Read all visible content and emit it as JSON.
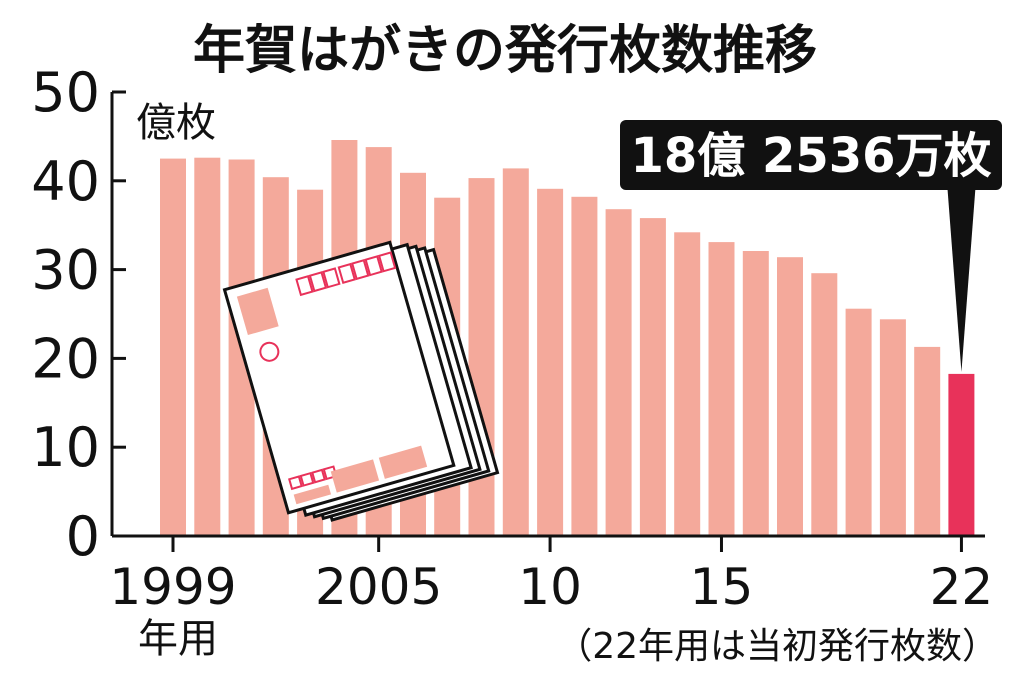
{
  "chart_data": {
    "type": "bar",
    "title": "年賀はがきの発行枚数推移",
    "ylabel": "億枚",
    "ylim": [
      0,
      50
    ],
    "yticks": [
      0,
      10,
      20,
      30,
      40,
      50
    ],
    "x": [
      1999,
      2000,
      2001,
      2002,
      2003,
      2004,
      2005,
      2006,
      2007,
      2008,
      2009,
      2010,
      2011,
      2012,
      2013,
      2014,
      2015,
      2016,
      2017,
      2018,
      2019,
      2020,
      2021,
      2022
    ],
    "values": [
      42.5,
      42.6,
      42.4,
      40.4,
      39.0,
      44.6,
      43.8,
      40.9,
      38.1,
      40.3,
      41.4,
      39.1,
      38.2,
      36.8,
      35.8,
      34.2,
      33.1,
      32.1,
      31.4,
      29.6,
      25.6,
      24.4,
      21.3,
      18.2536
    ],
    "xtick_labels": [
      {
        "x": 1999,
        "label": "1999"
      },
      {
        "x": 2005,
        "label": "2005"
      },
      {
        "x": 2010,
        "label": "10"
      },
      {
        "x": 2015,
        "label": "15"
      },
      {
        "x": 2022,
        "label": "22"
      }
    ],
    "xlabel_unit": "年用",
    "note": "（22年用は当初発行枚数）",
    "callout": {
      "x": 2022,
      "text": "18億 2536万枚"
    },
    "colors": {
      "bar": "#f4a99b",
      "highlight": "#e8325a",
      "axis": "#111111",
      "callout_bg": "#111111",
      "callout_text": "#ffffff"
    },
    "grid": false
  }
}
